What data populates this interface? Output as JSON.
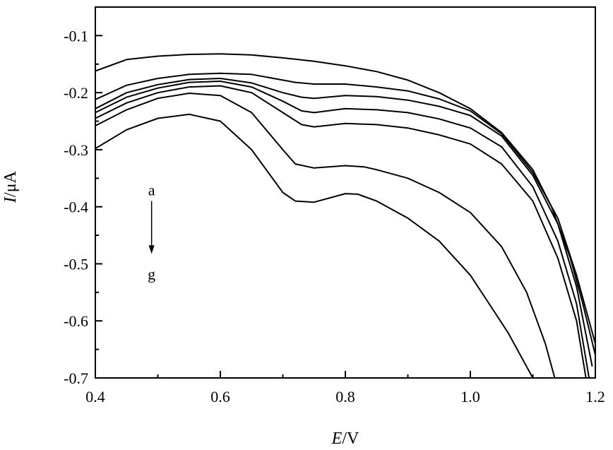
{
  "chart_data": {
    "type": "line",
    "xlabel": {
      "italic": "E",
      "rest": "/V"
    },
    "ylabel": {
      "italic": "I",
      "rest": "/μA"
    },
    "xlim": [
      0.4,
      1.2
    ],
    "ylim": [
      -0.7,
      -0.05
    ],
    "xticks": [
      0.4,
      0.6,
      0.8,
      1.0,
      1.2
    ],
    "xtick_labels": [
      "0.4",
      "0.6",
      "0.8",
      "1.0",
      "1.2"
    ],
    "yticks": [
      -0.1,
      -0.2,
      -0.3,
      -0.4,
      -0.5,
      -0.6,
      -0.7
    ],
    "ytick_labels": [
      "-0.1",
      "-0.2",
      "-0.3",
      "-0.4",
      "-0.5",
      "-0.6",
      "-0.7"
    ],
    "grid": false,
    "annotation": {
      "start_label": "a",
      "end_label": "g",
      "x": 0.49,
      "y_start": -0.39,
      "y_end": -0.48
    },
    "series": [
      {
        "x": [
          0.4,
          0.45,
          0.5,
          0.55,
          0.6,
          0.65,
          0.7,
          0.75,
          0.8,
          0.85,
          0.9,
          0.95,
          1.0,
          1.05,
          1.1,
          1.13,
          1.16,
          1.18,
          1.2
        ],
        "y": [
          -0.162,
          -0.142,
          -0.136,
          -0.133,
          -0.132,
          -0.134,
          -0.139,
          -0.145,
          -0.153,
          -0.163,
          -0.178,
          -0.2,
          -0.228,
          -0.27,
          -0.335,
          -0.4,
          -0.49,
          -0.57,
          -0.66
        ]
      },
      {
        "x": [
          0.4,
          0.45,
          0.5,
          0.55,
          0.6,
          0.65,
          0.7,
          0.72,
          0.75,
          0.8,
          0.85,
          0.9,
          0.95,
          1.0,
          1.05,
          1.1,
          1.14,
          1.17,
          1.2
        ],
        "y": [
          -0.212,
          -0.187,
          -0.175,
          -0.168,
          -0.166,
          -0.168,
          -0.178,
          -0.182,
          -0.185,
          -0.185,
          -0.19,
          -0.197,
          -0.211,
          -0.232,
          -0.272,
          -0.34,
          -0.42,
          -0.52,
          -0.64
        ]
      },
      {
        "x": [
          0.4,
          0.45,
          0.5,
          0.55,
          0.6,
          0.65,
          0.7,
          0.73,
          0.75,
          0.8,
          0.85,
          0.9,
          0.95,
          1.0,
          1.05,
          1.1,
          1.14,
          1.17,
          1.195
        ],
        "y": [
          -0.228,
          -0.2,
          -0.186,
          -0.177,
          -0.175,
          -0.183,
          -0.2,
          -0.208,
          -0.21,
          -0.205,
          -0.207,
          -0.213,
          -0.224,
          -0.24,
          -0.276,
          -0.345,
          -0.43,
          -0.54,
          -0.68
        ]
      },
      {
        "x": [
          0.4,
          0.45,
          0.5,
          0.55,
          0.6,
          0.65,
          0.7,
          0.73,
          0.75,
          0.8,
          0.85,
          0.9,
          0.95,
          1.0,
          1.05,
          1.1,
          1.14,
          1.17,
          1.19
        ],
        "y": [
          -0.235,
          -0.208,
          -0.192,
          -0.182,
          -0.18,
          -0.19,
          -0.215,
          -0.232,
          -0.235,
          -0.228,
          -0.23,
          -0.235,
          -0.246,
          -0.262,
          -0.295,
          -0.365,
          -0.46,
          -0.57,
          -0.7
        ]
      },
      {
        "x": [
          0.4,
          0.45,
          0.5,
          0.55,
          0.6,
          0.65,
          0.7,
          0.73,
          0.75,
          0.8,
          0.85,
          0.9,
          0.95,
          1.0,
          1.05,
          1.1,
          1.14,
          1.17,
          1.185
        ],
        "y": [
          -0.245,
          -0.218,
          -0.2,
          -0.19,
          -0.188,
          -0.2,
          -0.235,
          -0.256,
          -0.26,
          -0.254,
          -0.256,
          -0.262,
          -0.274,
          -0.29,
          -0.325,
          -0.39,
          -0.49,
          -0.6,
          -0.7
        ]
      },
      {
        "x": [
          0.4,
          0.45,
          0.5,
          0.55,
          0.6,
          0.65,
          0.7,
          0.72,
          0.75,
          0.8,
          0.83,
          0.85,
          0.9,
          0.95,
          1.0,
          1.05,
          1.09,
          1.12,
          1.135
        ],
        "y": [
          -0.258,
          -0.23,
          -0.21,
          -0.201,
          -0.205,
          -0.235,
          -0.3,
          -0.325,
          -0.332,
          -0.328,
          -0.33,
          -0.335,
          -0.35,
          -0.375,
          -0.41,
          -0.47,
          -0.55,
          -0.64,
          -0.7
        ]
      },
      {
        "x": [
          0.4,
          0.45,
          0.5,
          0.55,
          0.6,
          0.65,
          0.7,
          0.72,
          0.75,
          0.8,
          0.82,
          0.85,
          0.9,
          0.95,
          1.0,
          1.03,
          1.06,
          1.08,
          1.1
        ],
        "y": [
          -0.298,
          -0.265,
          -0.245,
          -0.238,
          -0.25,
          -0.3,
          -0.375,
          -0.39,
          -0.392,
          -0.377,
          -0.378,
          -0.39,
          -0.42,
          -0.46,
          -0.52,
          -0.57,
          -0.62,
          -0.66,
          -0.7
        ]
      }
    ]
  }
}
